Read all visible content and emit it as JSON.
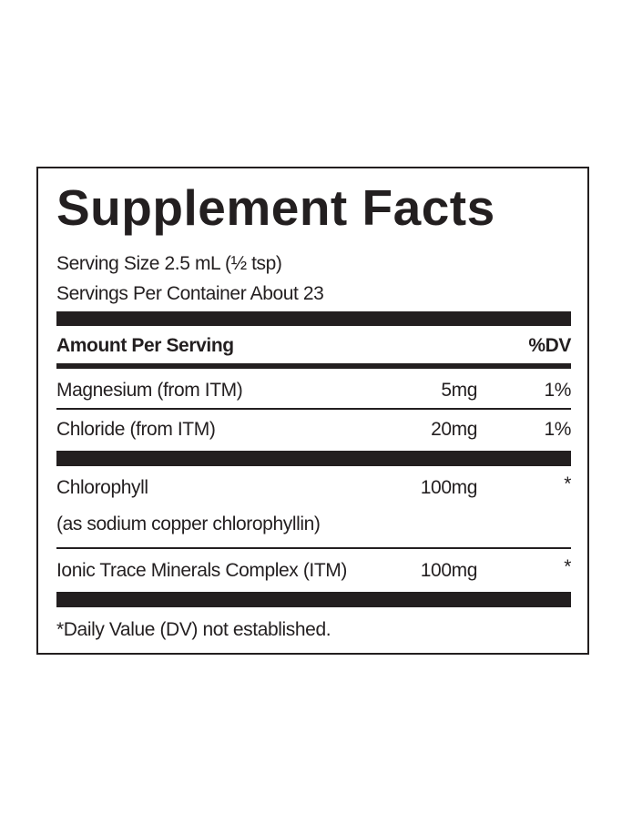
{
  "header": {
    "title": "Supplement Facts",
    "serving_size": "Serving Size 2.5 mL (½ tsp)",
    "servings_per_container": "Servings Per Container About 23"
  },
  "table": {
    "columns": [
      "Amount Per Serving",
      "%DV"
    ],
    "rows": [
      {
        "name": "Magnesium (from ITM)",
        "amount": "5mg",
        "dv": "1%"
      },
      {
        "name": "Chloride (from ITM)",
        "amount": "20mg",
        "dv": "1%"
      },
      {
        "name": "Chlorophyll",
        "sub": "(as sodium copper chlorophyllin)",
        "amount": "100mg",
        "dv": "*"
      },
      {
        "name": "Ionic Trace Minerals Complex (ITM)",
        "amount": "100mg",
        "dv": "*"
      }
    ]
  },
  "footnote": "*Daily Value (DV) not established."
}
